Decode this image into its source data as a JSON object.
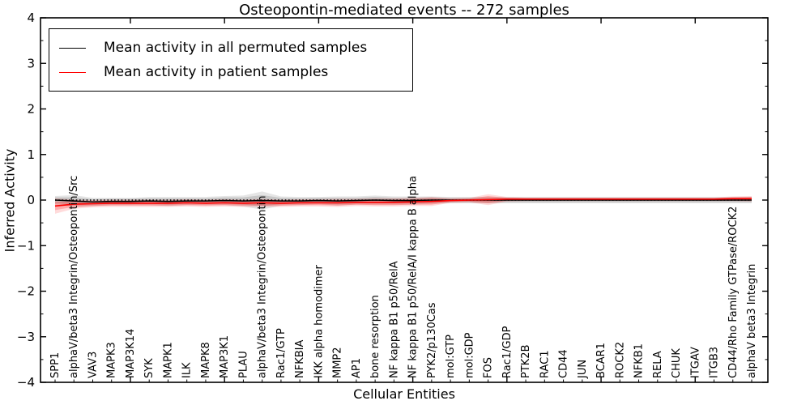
{
  "chart_data": {
    "type": "line",
    "title": "Osteopontin-mediated events -- 272 samples",
    "xlabel": "Cellular Entities",
    "ylabel": "Inferred Activity",
    "ylim": [
      -4,
      4
    ],
    "yticks": [
      -4,
      -3,
      -2,
      -1,
      0,
      1,
      2,
      3,
      4
    ],
    "ytick_minor_step": 0.5,
    "xticks_major_positions": [
      5,
      10,
      15,
      20,
      25,
      30,
      35
    ],
    "grid": false,
    "legend_position": "upper left",
    "zero_line": 0,
    "categories": [
      "SPP1",
      "alphaV/beta3 Integrin/Osteopontin/Src",
      "VAV3",
      "MAPK3",
      "MAP3K14",
      "SYK",
      "MAPK1",
      "ILK",
      "MAPK8",
      "MAP3K1",
      "PLAU",
      "alphaV/beta3 Integrin/Osteopontin",
      "Rac1/GTP",
      "NFKBIA",
      "IKK alpha homodimer",
      "MMP2",
      "AP1",
      "bone resorption",
      "NF kappa B1 p50/RelA",
      "NF kappa B1 p50/RelA/I kappa B alpha",
      "PYK2/p130Cas",
      "mol:GTP",
      "mol:GDP",
      "FOS",
      "Rac1/GDP",
      "PTK2B",
      "RAC1",
      "CD44",
      "JUN",
      "BCAR1",
      "ROCK2",
      "NFKB1",
      "RELA",
      "CHUK",
      "ITGAV",
      "ITGB3",
      "CD44/Rho Family GTPase/ROCK2",
      "alphaV beta3 Integrin"
    ],
    "series": [
      {
        "name": "Mean activity in all permuted samples",
        "color": "#000000",
        "band_color": "#000000",
        "values": [
          0.0,
          -0.02,
          -0.04,
          -0.03,
          -0.03,
          -0.02,
          -0.03,
          -0.02,
          -0.02,
          -0.01,
          -0.02,
          -0.01,
          -0.02,
          -0.02,
          -0.01,
          -0.02,
          -0.01,
          0.0,
          -0.01,
          -0.01,
          0.0,
          0.0,
          0.0,
          0.0,
          0.0,
          0.0,
          0.0,
          0.0,
          0.0,
          0.0,
          0.0,
          0.0,
          0.0,
          0.0,
          0.0,
          0.0,
          0.0,
          0.0
        ],
        "band_inner": [
          0.06,
          0.08,
          0.06,
          0.06,
          0.06,
          0.06,
          0.07,
          0.06,
          0.06,
          0.07,
          0.08,
          0.12,
          0.07,
          0.06,
          0.06,
          0.07,
          0.06,
          0.07,
          0.06,
          0.06,
          0.06,
          0.05,
          0.05,
          0.05,
          0.05,
          0.05,
          0.05,
          0.05,
          0.05,
          0.05,
          0.05,
          0.05,
          0.05,
          0.05,
          0.05,
          0.05,
          0.05,
          0.05
        ],
        "band_outer": [
          0.09,
          0.13,
          0.09,
          0.08,
          0.08,
          0.09,
          0.1,
          0.09,
          0.09,
          0.1,
          0.12,
          0.2,
          0.1,
          0.09,
          0.08,
          0.1,
          0.09,
          0.1,
          0.09,
          0.09,
          0.08,
          0.07,
          0.07,
          0.07,
          0.07,
          0.07,
          0.07,
          0.07,
          0.07,
          0.07,
          0.07,
          0.07,
          0.07,
          0.07,
          0.07,
          0.07,
          0.07,
          0.07
        ]
      },
      {
        "name": "Mean activity in patient samples",
        "color": "#ff0000",
        "band_color": "#ff0000",
        "values": [
          -0.13,
          -0.09,
          -0.08,
          -0.07,
          -0.07,
          -0.07,
          -0.07,
          -0.06,
          -0.07,
          -0.06,
          -0.07,
          -0.06,
          -0.07,
          -0.06,
          -0.06,
          -0.06,
          -0.05,
          -0.05,
          -0.05,
          -0.04,
          -0.03,
          -0.01,
          0.0,
          0.01,
          0.02,
          0.02,
          0.02,
          0.02,
          0.02,
          0.02,
          0.02,
          0.02,
          0.02,
          0.02,
          0.02,
          0.02,
          0.03,
          0.03
        ],
        "band_inner": [
          0.09,
          0.06,
          0.05,
          0.05,
          0.05,
          0.05,
          0.05,
          0.05,
          0.05,
          0.05,
          0.05,
          0.06,
          0.05,
          0.05,
          0.05,
          0.06,
          0.05,
          0.06,
          0.06,
          0.06,
          0.07,
          0.03,
          0.03,
          0.08,
          0.03,
          0.02,
          0.02,
          0.02,
          0.02,
          0.02,
          0.02,
          0.02,
          0.02,
          0.02,
          0.02,
          0.02,
          0.03,
          0.04
        ],
        "band_outer": [
          0.17,
          0.1,
          0.08,
          0.08,
          0.08,
          0.08,
          0.08,
          0.08,
          0.08,
          0.08,
          0.08,
          0.09,
          0.08,
          0.08,
          0.08,
          0.09,
          0.08,
          0.09,
          0.09,
          0.09,
          0.1,
          0.05,
          0.05,
          0.12,
          0.05,
          0.04,
          0.04,
          0.04,
          0.04,
          0.04,
          0.04,
          0.04,
          0.04,
          0.04,
          0.04,
          0.04,
          0.05,
          0.06
        ]
      }
    ]
  }
}
